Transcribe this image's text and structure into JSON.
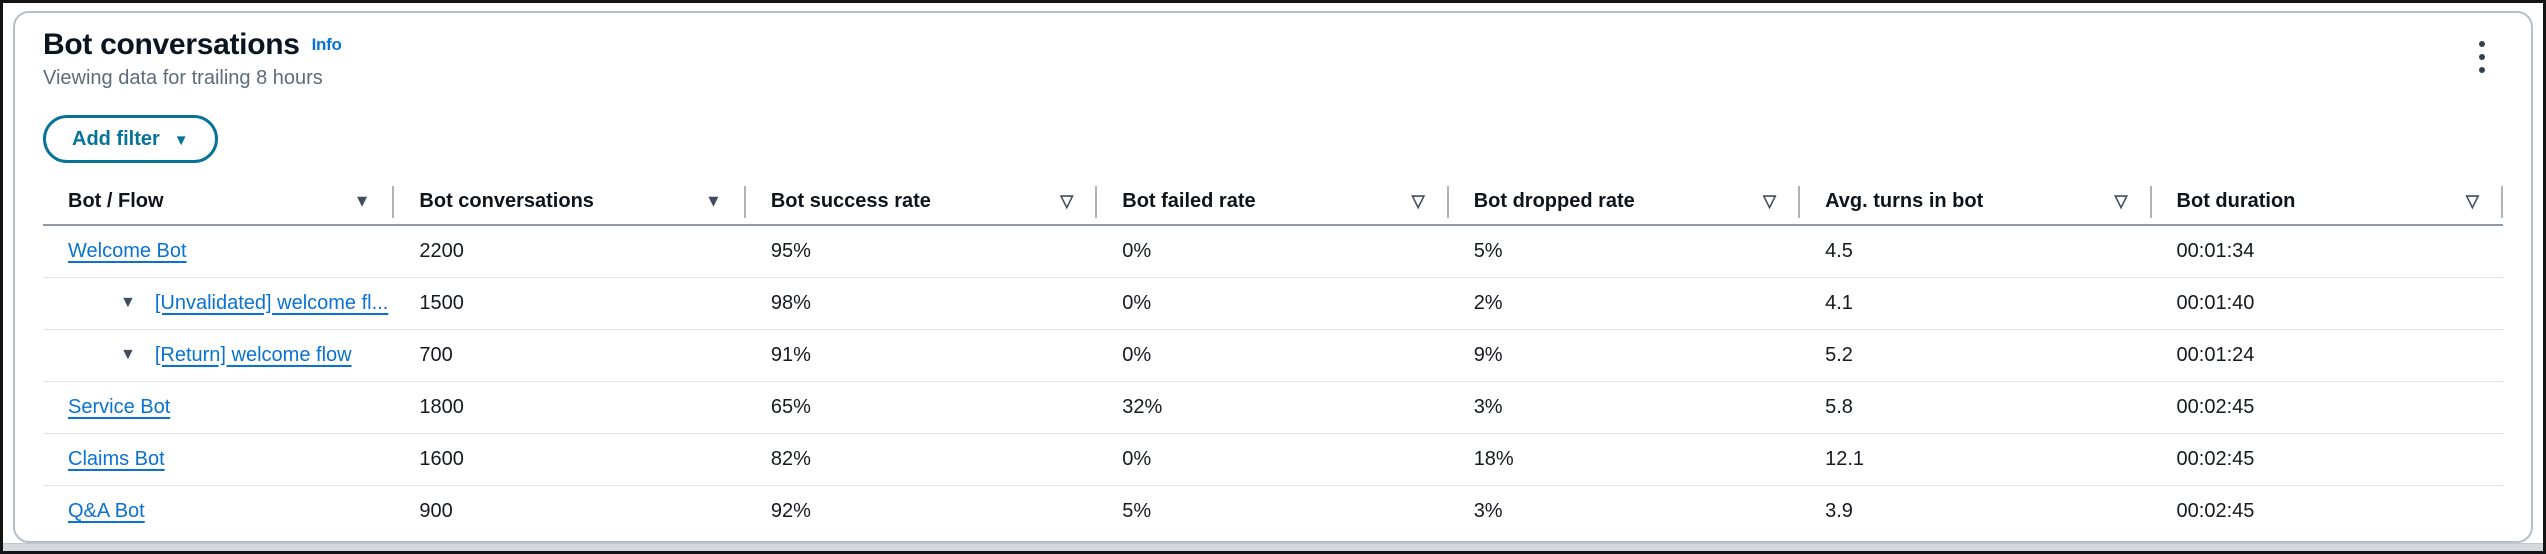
{
  "panel": {
    "title": "Bot conversations",
    "info_link": "Info",
    "subtitle": "Viewing data for trailing 8 hours"
  },
  "toolbar": {
    "add_filter_label": "Add filter",
    "dropdown_caret": "▼"
  },
  "icons": {
    "kebab_menu": "vertical-ellipsis",
    "filter_filled_glyph": "▼",
    "filter_outline_glyph": "▽",
    "row_expand_glyph": "▼"
  },
  "colors": {
    "link_blue": "#0972d3",
    "button_teal": "#077398",
    "heading_text": "#0b1421",
    "body_text": "#16191f",
    "muted_text": "#5f6b7a",
    "card_border": "#b6becb",
    "header_rule": "#8d99a7",
    "row_divider": "#dfe3e8"
  },
  "table": {
    "columns": [
      {
        "label": "Bot / Flow",
        "filter_glyph": "▼"
      },
      {
        "label": "Bot conversations",
        "filter_glyph": "▼"
      },
      {
        "label": "Bot success rate",
        "filter_glyph": "▽"
      },
      {
        "label": "Bot failed rate",
        "filter_glyph": "▽"
      },
      {
        "label": "Bot dropped rate",
        "filter_glyph": "▽"
      },
      {
        "label": "Avg. turns in bot",
        "filter_glyph": "▽"
      },
      {
        "label": "Bot duration",
        "filter_glyph": "▽"
      }
    ],
    "rows": [
      {
        "type": "bot",
        "name": "Welcome Bot",
        "conversations": "2200",
        "success_rate": "95%",
        "failed_rate": "0%",
        "dropped_rate": "5%",
        "avg_turns": "4.5",
        "duration": "00:01:34"
      },
      {
        "type": "flow",
        "toggle": "▼",
        "name": "[Unvalidated] welcome fl...",
        "conversations": "1500",
        "success_rate": "98%",
        "failed_rate": "0%",
        "dropped_rate": "2%",
        "avg_turns": "4.1",
        "duration": "00:01:40"
      },
      {
        "type": "flow",
        "toggle": "▼",
        "name": "[Return] welcome flow",
        "conversations": "700",
        "success_rate": "91%",
        "failed_rate": "0%",
        "dropped_rate": "9%",
        "avg_turns": "5.2",
        "duration": "00:01:24"
      },
      {
        "type": "bot",
        "name": "Service Bot",
        "conversations": "1800",
        "success_rate": "65%",
        "failed_rate": "32%",
        "dropped_rate": "3%",
        "avg_turns": "5.8",
        "duration": "00:02:45"
      },
      {
        "type": "bot",
        "name": "Claims Bot",
        "conversations": "1600",
        "success_rate": "82%",
        "failed_rate": "0%",
        "dropped_rate": "18%",
        "avg_turns": "12.1",
        "duration": "00:02:45"
      },
      {
        "type": "bot",
        "name": "Q&A Bot",
        "conversations": "900",
        "success_rate": "92%",
        "failed_rate": "5%",
        "dropped_rate": "3%",
        "avg_turns": "3.9",
        "duration": "00:02:45"
      }
    ]
  }
}
